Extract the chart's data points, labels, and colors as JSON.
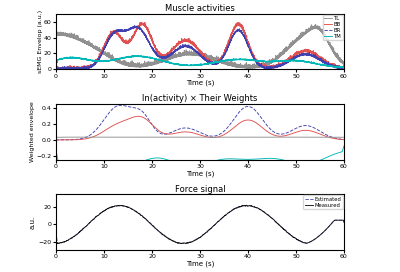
{
  "title1": "Muscle activities",
  "title2": "ln(activity) × Their Weights",
  "title3": "Force signal",
  "xlabel": "Time (s)",
  "ylabel1": "sEMG Envelop (a.u.)",
  "ylabel2": "Weighted envelope",
  "ylabel3": "a.u.",
  "xmin": 0,
  "xmax": 60,
  "legend1": [
    "BB",
    "BR",
    "TL",
    "TM"
  ],
  "legend3": [
    "Estimated",
    "Measured"
  ],
  "colors1": [
    "#e05050",
    "#4040b0",
    "#909090",
    "#00b8b8"
  ],
  "linestyles1": [
    "-",
    "--",
    "-",
    "-"
  ],
  "color_est": "#5050b0",
  "color_meas": "#151515",
  "ylim1": [
    0,
    70
  ],
  "ylim2": [
    -0.25,
    0.45
  ],
  "ylim3": [
    -30,
    35
  ],
  "yticks1": [
    0,
    20,
    40,
    60
  ],
  "yticks2": [
    -0.2,
    0.0,
    0.2,
    0.4
  ],
  "yticks3": [
    -20,
    0,
    20
  ],
  "xticks": [
    0,
    10,
    20,
    30,
    40,
    50,
    60
  ]
}
